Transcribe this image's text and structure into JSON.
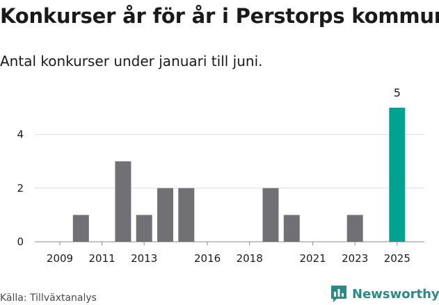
{
  "title": "Konkurser år för år i Perstorps kommun",
  "subtitle": "Antal konkurser under januari till juni.",
  "source": "Källa: Tillväxtanalys",
  "brand": {
    "name": "Newsworthy",
    "icon": "newsworthy-logo-icon",
    "color": "#2a8a86"
  },
  "chart_data": {
    "type": "bar",
    "x": [
      2009,
      2010,
      2011,
      2012,
      2013,
      2014,
      2015,
      2016,
      2017,
      2018,
      2019,
      2020,
      2021,
      2022,
      2023,
      2024,
      2025
    ],
    "values": [
      0,
      1,
      0,
      3,
      1,
      2,
      2,
      0,
      0,
      0,
      2,
      1,
      0,
      0,
      1,
      0,
      5
    ],
    "x_ticks": [
      2009,
      2011,
      2013,
      2016,
      2018,
      2021,
      2023,
      2025
    ],
    "y_ticks": [
      0,
      2,
      4
    ],
    "ylim": [
      0,
      5
    ],
    "data_labels": [
      {
        "x": 2025,
        "label": "5"
      }
    ],
    "colors": {
      "default": "#717075",
      "highlight": "#00a392"
    },
    "highlight_x": 2025,
    "grid": true
  }
}
